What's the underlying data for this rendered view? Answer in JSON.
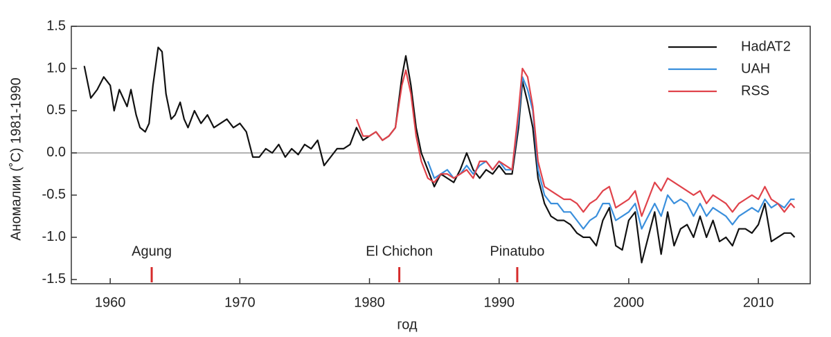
{
  "chart_data": {
    "type": "line",
    "xlabel": "год",
    "ylabel": "Аномалии (˚C) 1981-1990",
    "xlim": [
      1957,
      2014
    ],
    "ylim": [
      -1.55,
      1.5
    ],
    "xticks": [
      1960,
      1970,
      1980,
      1990,
      2000,
      2010
    ],
    "yticks": [
      1.5,
      {
        "value": 1.0,
        "label": "1.0"
      },
      0.5,
      {
        "value": 0.0,
        "label": "0.0"
      },
      -0.5,
      {
        "value": -1.0,
        "label": "-1.0"
      },
      -1.5
    ],
    "reference_line": 0,
    "legend": "upper right",
    "annotations": [
      {
        "label": "Agung",
        "x": 1963.2
      },
      {
        "label": "El Chichon",
        "x": 1982.3
      },
      {
        "label": "Pinatubo",
        "x": 1991.4
      }
    ],
    "annotation_color": "#d62b2b",
    "series": [
      {
        "name": "HadAT2",
        "color": "#111111",
        "x": [
          1958.0,
          1958.5,
          1959.0,
          1959.5,
          1960.0,
          1960.3,
          1960.7,
          1961.0,
          1961.3,
          1961.6,
          1962.0,
          1962.3,
          1962.7,
          1963.0,
          1963.3,
          1963.7,
          1964.0,
          1964.3,
          1964.7,
          1965.0,
          1965.4,
          1965.7,
          1966.0,
          1966.5,
          1967.0,
          1967.5,
          1968.0,
          1968.5,
          1969.0,
          1969.5,
          1970.0,
          1970.5,
          1971.0,
          1971.5,
          1972.0,
          1972.5,
          1973.0,
          1973.5,
          1974.0,
          1974.5,
          1975.0,
          1975.5,
          1976.0,
          1976.5,
          1977.0,
          1977.5,
          1978.0,
          1978.5,
          1979.0,
          1979.5,
          1980.0,
          1980.5,
          1981.0,
          1981.5,
          1982.0,
          1982.5,
          1982.8,
          1983.2,
          1983.6,
          1984.0,
          1984.5,
          1985.0,
          1985.5,
          1986.0,
          1986.5,
          1987.0,
          1987.5,
          1988.0,
          1988.5,
          1989.0,
          1989.5,
          1990.0,
          1990.5,
          1991.0,
          1991.5,
          1991.8,
          1992.2,
          1992.6,
          1993.0,
          1993.5,
          1994.0,
          1994.5,
          1995.0,
          1995.5,
          1996.0,
          1996.5,
          1997.0,
          1997.5,
          1998.0,
          1998.5,
          1999.0,
          1999.5,
          2000.0,
          2000.5,
          2001.0,
          2001.5,
          2002.0,
          2002.5,
          2003.0,
          2003.5,
          2004.0,
          2004.5,
          2005.0,
          2005.5,
          2006.0,
          2006.5,
          2007.0,
          2007.5,
          2008.0,
          2008.5,
          2009.0,
          2009.5,
          2010.0,
          2010.5,
          2011.0,
          2011.5,
          2012.0,
          2012.5,
          2012.8
        ],
        "values": [
          1.03,
          0.65,
          0.75,
          0.9,
          0.8,
          0.5,
          0.75,
          0.65,
          0.55,
          0.75,
          0.45,
          0.3,
          0.25,
          0.35,
          0.8,
          1.25,
          1.2,
          0.7,
          0.4,
          0.45,
          0.6,
          0.4,
          0.3,
          0.5,
          0.35,
          0.45,
          0.3,
          0.35,
          0.4,
          0.3,
          0.35,
          0.25,
          -0.05,
          -0.05,
          0.05,
          0.0,
          0.1,
          -0.05,
          0.05,
          -0.02,
          0.1,
          0.05,
          0.15,
          -0.15,
          -0.05,
          0.05,
          0.05,
          0.1,
          0.3,
          0.15,
          0.2,
          0.25,
          0.15,
          0.2,
          0.3,
          0.9,
          1.15,
          0.8,
          0.3,
          0.0,
          -0.2,
          -0.4,
          -0.25,
          -0.3,
          -0.35,
          -0.2,
          0.0,
          -0.2,
          -0.3,
          -0.2,
          -0.25,
          -0.15,
          -0.25,
          -0.25,
          0.3,
          0.85,
          0.6,
          0.3,
          -0.3,
          -0.6,
          -0.75,
          -0.8,
          -0.8,
          -0.85,
          -0.95,
          -1.0,
          -1.0,
          -1.1,
          -0.8,
          -0.65,
          -1.1,
          -1.15,
          -0.8,
          -0.7,
          -1.3,
          -1.0,
          -0.7,
          -1.2,
          -0.7,
          -1.1,
          -0.9,
          -0.85,
          -1.0,
          -0.75,
          -1.0,
          -0.8,
          -1.05,
          -1.0,
          -1.1,
          -0.9,
          -0.9,
          -0.95,
          -0.85,
          -0.6,
          -1.05,
          -1.0,
          -0.95,
          -0.95,
          -1.0
        ]
      },
      {
        "name": "UAH",
        "color": "#3a8fdc",
        "x": [
          1984.5,
          1985.0,
          1985.5,
          1986.0,
          1986.5,
          1987.0,
          1987.5,
          1988.0,
          1988.5,
          1989.0,
          1989.5,
          1990.0,
          1990.5,
          1991.0,
          1991.5,
          1991.8,
          1992.2,
          1992.6,
          1993.0,
          1993.5,
          1994.0,
          1994.5,
          1995.0,
          1995.5,
          1996.0,
          1996.5,
          1997.0,
          1997.5,
          1998.0,
          1998.5,
          1999.0,
          1999.5,
          2000.0,
          2000.5,
          2001.0,
          2001.5,
          2002.0,
          2002.5,
          2003.0,
          2003.5,
          2004.0,
          2004.5,
          2005.0,
          2005.5,
          2006.0,
          2006.5,
          2007.0,
          2007.5,
          2008.0,
          2008.5,
          2009.0,
          2009.5,
          2010.0,
          2010.5,
          2011.0,
          2011.5,
          2012.0,
          2012.5,
          2012.8
        ],
        "values": [
          -0.1,
          -0.3,
          -0.25,
          -0.2,
          -0.3,
          -0.25,
          -0.15,
          -0.25,
          -0.15,
          -0.1,
          -0.2,
          -0.1,
          -0.2,
          -0.2,
          0.4,
          0.9,
          0.75,
          0.5,
          -0.2,
          -0.5,
          -0.6,
          -0.6,
          -0.7,
          -0.7,
          -0.8,
          -0.9,
          -0.8,
          -0.75,
          -0.6,
          -0.6,
          -0.8,
          -0.75,
          -0.7,
          -0.6,
          -0.9,
          -0.75,
          -0.6,
          -0.75,
          -0.5,
          -0.6,
          -0.55,
          -0.6,
          -0.75,
          -0.6,
          -0.75,
          -0.65,
          -0.7,
          -0.75,
          -0.85,
          -0.75,
          -0.7,
          -0.65,
          -0.7,
          -0.55,
          -0.65,
          -0.6,
          -0.65,
          -0.55,
          -0.55
        ]
      },
      {
        "name": "RSS",
        "color": "#e0424a",
        "x": [
          1979.0,
          1979.5,
          1980.0,
          1980.5,
          1981.0,
          1981.5,
          1982.0,
          1982.5,
          1982.8,
          1983.2,
          1983.6,
          1984.0,
          1984.5,
          1985.0,
          1985.5,
          1986.0,
          1986.5,
          1987.0,
          1987.5,
          1988.0,
          1988.5,
          1989.0,
          1989.5,
          1990.0,
          1990.5,
          1991.0,
          1991.5,
          1991.8,
          1992.2,
          1992.6,
          1993.0,
          1993.5,
          1994.0,
          1994.5,
          1995.0,
          1995.5,
          1996.0,
          1996.5,
          1997.0,
          1997.5,
          1998.0,
          1998.5,
          1999.0,
          1999.5,
          2000.0,
          2000.5,
          2001.0,
          2001.5,
          2002.0,
          2002.5,
          2003.0,
          2003.5,
          2004.0,
          2004.5,
          2005.0,
          2005.5,
          2006.0,
          2006.5,
          2007.0,
          2007.5,
          2008.0,
          2008.5,
          2009.0,
          2009.5,
          2010.0,
          2010.5,
          2011.0,
          2011.5,
          2012.0,
          2012.5,
          2012.8
        ],
        "values": [
          0.4,
          0.2,
          0.2,
          0.25,
          0.15,
          0.2,
          0.3,
          0.8,
          0.98,
          0.7,
          0.2,
          -0.1,
          -0.3,
          -0.35,
          -0.25,
          -0.25,
          -0.3,
          -0.25,
          -0.2,
          -0.3,
          -0.1,
          -0.1,
          -0.2,
          -0.1,
          -0.15,
          -0.2,
          0.5,
          1.0,
          0.9,
          0.55,
          -0.1,
          -0.4,
          -0.45,
          -0.5,
          -0.55,
          -0.55,
          -0.6,
          -0.7,
          -0.6,
          -0.55,
          -0.45,
          -0.4,
          -0.65,
          -0.6,
          -0.55,
          -0.45,
          -0.75,
          -0.55,
          -0.35,
          -0.45,
          -0.3,
          -0.35,
          -0.4,
          -0.45,
          -0.5,
          -0.45,
          -0.6,
          -0.5,
          -0.55,
          -0.6,
          -0.7,
          -0.6,
          -0.55,
          -0.5,
          -0.55,
          -0.4,
          -0.55,
          -0.6,
          -0.7,
          -0.6,
          -0.65
        ]
      }
    ]
  }
}
